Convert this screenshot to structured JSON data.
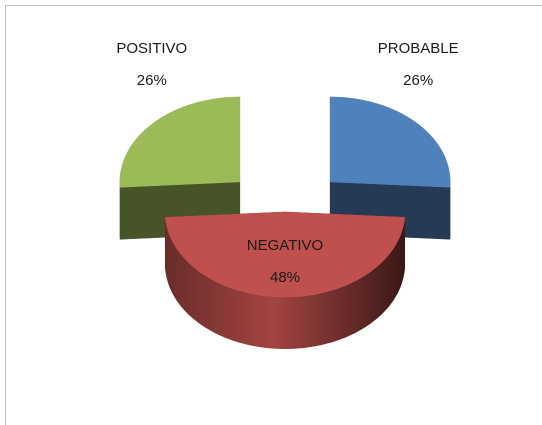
{
  "chart_data": {
    "type": "pie",
    "categories": [
      "PROBABLE",
      "NEGATIVO",
      "POSITIVO"
    ],
    "values": [
      26,
      48,
      26
    ],
    "value_labels": [
      "26%",
      "48%",
      "26%"
    ],
    "colors": [
      "#4f81bd",
      "#c0504d",
      "#9bbb59"
    ]
  }
}
